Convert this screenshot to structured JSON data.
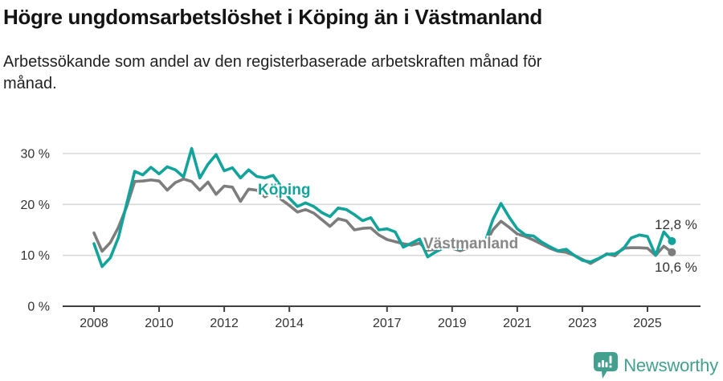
{
  "header": {
    "title": "Högre ungdomsarbetslöshet i Köping än i Västmanland",
    "subtitle_line1": "Arbetssökande som andel av den registerbaserade arbetskraften månad för",
    "subtitle_line2": "månad."
  },
  "chart_data": {
    "type": "line",
    "unit": "%",
    "x_start_year": 2008,
    "x_step_years": 0.25,
    "x_end_year": 2025.75,
    "ylim": [
      0,
      32
    ],
    "grid": "horizontal",
    "legend_position": "inline-labels",
    "x_ticks": [
      {
        "year": 2008,
        "label": "2008"
      },
      {
        "year": 2010,
        "label": "2010"
      },
      {
        "year": 2012,
        "label": "2012"
      },
      {
        "year": 2014,
        "label": "2014"
      },
      {
        "year": 2017,
        "label": "2017"
      },
      {
        "year": 2019,
        "label": "2019"
      },
      {
        "year": 2021,
        "label": "2021"
      },
      {
        "year": 2023,
        "label": "2023"
      },
      {
        "year": 2025,
        "label": "2025"
      }
    ],
    "y_ticks": [
      {
        "value": 0,
        "label": "0 %"
      },
      {
        "value": 10,
        "label": "10 %"
      },
      {
        "value": 20,
        "label": "20 %"
      },
      {
        "value": 30,
        "label": "30 %"
      }
    ],
    "series": [
      {
        "name": "Köping",
        "color": "#12a49b",
        "end_label": "12,8 %",
        "end_value": 12.8,
        "values": [
          12.3,
          7.8,
          9.5,
          13.5,
          20.0,
          26.5,
          25.8,
          27.3,
          26.0,
          27.4,
          26.8,
          25.4,
          31.0,
          25.2,
          27.9,
          29.8,
          26.6,
          27.2,
          25.2,
          26.8,
          25.5,
          25.2,
          25.7,
          23.5,
          21.2,
          19.6,
          20.3,
          19.6,
          18.4,
          17.6,
          19.3,
          19.0,
          18.0,
          16.8,
          17.4,
          15.0,
          15.2,
          14.6,
          11.6,
          12.4,
          13.2,
          9.7,
          10.7,
          11.5,
          11.6,
          11.2,
          12.0,
          12.9,
          12.4,
          17.0,
          20.2,
          17.5,
          15.2,
          14.0,
          13.8,
          12.6,
          11.7,
          10.9,
          11.2,
          10.0,
          9.0,
          8.7,
          9.4,
          10.2,
          10.3,
          11.2,
          13.4,
          14.0,
          13.7,
          10.0,
          14.6,
          12.8
        ]
      },
      {
        "name": "Västmanland",
        "color": "#7d7d7d",
        "label_color": "#878787",
        "end_label": "10,6 %",
        "end_value": 10.6,
        "values": [
          14.4,
          10.8,
          12.5,
          15.5,
          19.5,
          24.5,
          24.6,
          24.8,
          24.6,
          22.8,
          24.3,
          25.0,
          24.5,
          22.8,
          24.4,
          22.0,
          23.6,
          23.4,
          20.6,
          23.0,
          22.8,
          21.5,
          22.5,
          21.0,
          19.8,
          18.5,
          19.0,
          18.3,
          17.0,
          15.7,
          17.2,
          16.8,
          15.0,
          15.3,
          15.4,
          14.0,
          13.1,
          12.7,
          12.3,
          12.0,
          12.4,
          11.0,
          11.2,
          11.6,
          11.4,
          10.9,
          11.5,
          12.2,
          12.0,
          15.0,
          16.7,
          15.5,
          14.2,
          13.7,
          13.0,
          12.2,
          11.4,
          10.8,
          10.6,
          10.0,
          9.2,
          8.4,
          9.3,
          10.3,
          9.9,
          11.4,
          11.5,
          11.5,
          11.4,
          10.0,
          11.8,
          10.6
        ]
      }
    ]
  },
  "footer": {
    "brand": "Newsworthy",
    "logo_color": "#43a08e"
  },
  "colors": {
    "accent_teal": "#12a49b",
    "series_grey": "#7d7d7d",
    "gridline": "#d9d9d9",
    "axis": "#404040",
    "text": "#333333",
    "title": "#141414",
    "background": "#ffffff"
  }
}
